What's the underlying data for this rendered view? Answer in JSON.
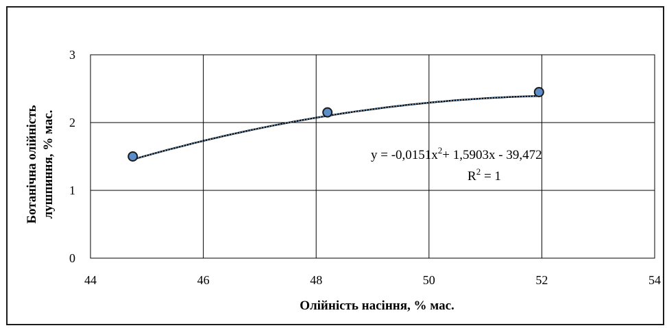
{
  "chart_data": {
    "type": "scatter",
    "title": "",
    "xlabel": "Олійність насіння, % мас.",
    "ylabel_lines": [
      "Ботанічна олійність",
      "лушпиння, % мас."
    ],
    "xlim": [
      44,
      54
    ],
    "ylim": [
      0,
      3
    ],
    "x_ticks": [
      "44",
      "46",
      "48",
      "50",
      "52",
      "54"
    ],
    "y_ticks": [
      "0",
      "1",
      "2",
      "3"
    ],
    "grid": true,
    "series": [
      {
        "x": [
          44.75,
          48.2,
          51.95
        ],
        "y": [
          1.5,
          2.15,
          2.45
        ]
      }
    ],
    "trendline": {
      "type": "polynomial-2",
      "coefficients": [
        -0.0151,
        1.5903,
        -39.472
      ],
      "equation_prefix": "y = -0,0151x",
      "equation_mid": "+ 1,5903x - 39,472",
      "superscript": "2",
      "r2_prefix": "R",
      "r2_suffix": " = 1"
    },
    "colors": {
      "marker_fill": "#5b8ec9",
      "marker_stroke": "#1a1a1a",
      "line": "#000000",
      "trendline": "#6fa8dc"
    }
  }
}
